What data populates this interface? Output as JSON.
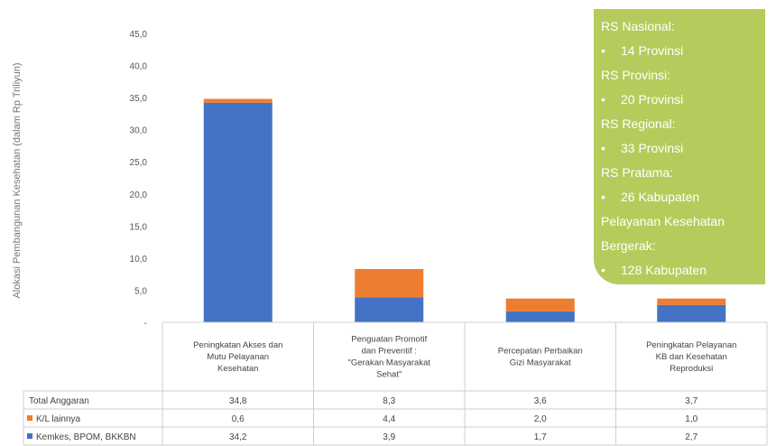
{
  "chart_data": {
    "type": "bar",
    "stacked": true,
    "ylabel": "Alokasi Pembangunan Kesehatan (dalam Rp Triliyun)",
    "ylim": [
      0,
      45
    ],
    "yticks": [
      "-",
      "5,0",
      "10,0",
      "15,0",
      "20,0",
      "25,0",
      "30,0",
      "35,0",
      "40,0",
      "45,0"
    ],
    "categories": [
      [
        "Peningkatan Akses dan",
        "Mutu Pelayanan",
        "Kesehatan"
      ],
      [
        "Penguatan Promotif",
        "dan Preventif :",
        "\"Gerakan Masyarakat",
        "Sehat\""
      ],
      [
        "Percepatan Perbaikan",
        "Gizi Masyarakat"
      ],
      [
        "Peningkatan Pelayanan",
        "KB dan Kesehatan",
        "Reproduksi"
      ]
    ],
    "series": [
      {
        "name": "Kemkes, BPOM, BKKBN",
        "color": "#4472c4",
        "values": [
          34.2,
          3.9,
          1.7,
          2.7
        ],
        "labels": [
          "34,2",
          "3,9",
          "1,7",
          "2,7"
        ]
      },
      {
        "name": "K/L lainnya",
        "color": "#ed7d31",
        "values": [
          0.6,
          4.4,
          2.0,
          1.0
        ],
        "labels": [
          "0,6",
          "4,4",
          "2,0",
          "1,0"
        ]
      }
    ],
    "total_row": {
      "name": "Total Anggaran",
      "labels": [
        "34,8",
        "8,3",
        "3,6",
        "3,7"
      ]
    }
  },
  "note": {
    "background": "#b5cc5c",
    "bullet": "•",
    "lines": [
      {
        "kind": "heading",
        "text": "RS Nasional:"
      },
      {
        "kind": "item",
        "text": "14 Provinsi"
      },
      {
        "kind": "heading",
        "text": "RS Provinsi:"
      },
      {
        "kind": "item",
        "text": "20 Provinsi"
      },
      {
        "kind": "heading",
        "text": "RS Regional:"
      },
      {
        "kind": "item",
        "text": "33 Provinsi"
      },
      {
        "kind": "heading",
        "text": "RS Pratama:"
      },
      {
        "kind": "item",
        "text": "26 Kabupaten"
      },
      {
        "kind": "heading",
        "text": "Pelayanan Kesehatan"
      },
      {
        "kind": "heading",
        "text": "Bergerak:"
      },
      {
        "kind": "item",
        "text": "128 Kabupaten"
      }
    ]
  }
}
